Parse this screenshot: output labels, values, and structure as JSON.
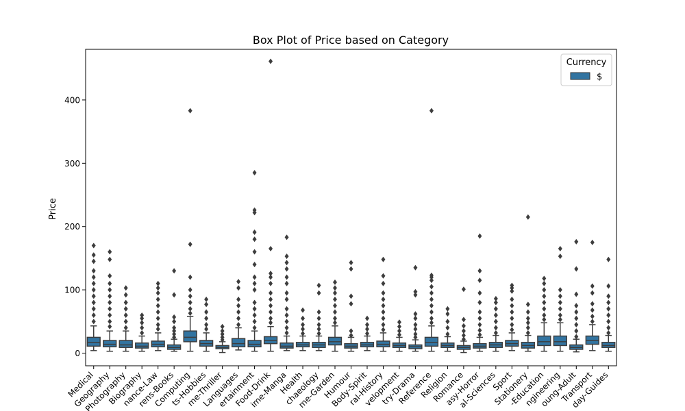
{
  "chart_data": {
    "type": "box",
    "title": "Box Plot of Price based on Category",
    "xlabel": "",
    "ylabel": "Price",
    "ylim": [
      -20,
      480
    ],
    "yticks": [
      0,
      100,
      200,
      300,
      400
    ],
    "grid": false,
    "legend": {
      "title": "Currency",
      "entries": [
        "$"
      ],
      "position": "top-right"
    },
    "color": "#3274a1",
    "categories": [
      "Medical",
      "Geography",
      "Photography",
      "Biography",
      "Finance-Law",
      "Childrens-Books",
      "Computing",
      "Crafts-Hobbies",
      "Crime-Thriller",
      "Languages",
      "Entertainment",
      "Food-Drink",
      "Graphic-Novels-Anime-Manga",
      "Health",
      "Archaeology",
      "Home-Garden",
      "Humour",
      "Mind-Body-Spirit",
      "Natural-History",
      "Personal-Development",
      "Poetry-Drama",
      "Reference",
      "Religion",
      "Romance",
      "Science-Fiction-Fantasy-Horror",
      "Science-Geography-Social-Sciences",
      "Sport",
      "Stationery",
      "Teaching-Education",
      "Technology-Engineering",
      "Teen-Young-Adult",
      "Transport",
      "Travel-Holiday-Guides"
    ],
    "display_labels": [
      "Medical",
      "Geography",
      "Photography",
      "Biography",
      "nance-Law",
      "rens-Books",
      "Computing",
      "ts-Hobbies",
      "me-Thriller",
      "Languages",
      "ertainment",
      "Food-Drink",
      "ime-Manga",
      "Health",
      "chaeology",
      "me-Garden",
      "Humour",
      "Body-Spirit",
      "ral-History",
      "velopment",
      "try-Drama",
      "Reference",
      "Religion",
      "Romance",
      "asy-Horror",
      "al-Sciences",
      "Sport",
      "Stationery",
      "-Education",
      "ngineering",
      "oung-Adult",
      "Transport",
      "day-Guides"
    ],
    "boxes": [
      {
        "q1": 11,
        "median": 17,
        "q3": 25,
        "whislo": 4,
        "whishi": 43,
        "outliers": [
          50,
          60,
          70,
          80,
          90,
          100,
          110,
          120,
          130,
          145,
          155,
          170
        ]
      },
      {
        "q1": 10,
        "median": 14,
        "q3": 20,
        "whislo": 3,
        "whishi": 35,
        "outliers": [
          42,
          50,
          60,
          70,
          80,
          90,
          100,
          110,
          122,
          148,
          160
        ]
      },
      {
        "q1": 9,
        "median": 13,
        "q3": 20,
        "whislo": 3,
        "whishi": 35,
        "outliers": [
          40,
          50,
          60,
          70,
          80,
          92,
          103
        ]
      },
      {
        "q1": 8,
        "median": 11,
        "q3": 16,
        "whislo": 3,
        "whishi": 27,
        "outliers": [
          32,
          40,
          48,
          55,
          60
        ]
      },
      {
        "q1": 10,
        "median": 14,
        "q3": 19,
        "whislo": 4,
        "whishi": 32,
        "outliers": [
          38,
          45,
          55,
          65,
          75,
          85,
          95,
          103,
          110
        ]
      },
      {
        "q1": 6,
        "median": 9,
        "q3": 13,
        "whislo": 3,
        "whishi": 22,
        "outliers": [
          25,
          30,
          35,
          40,
          50,
          57,
          92,
          130
        ]
      },
      {
        "q1": 18,
        "median": 25,
        "q3": 35,
        "whislo": 3,
        "whishi": 58,
        "outliers": [
          63,
          70,
          80,
          90,
          100,
          120,
          172,
          383
        ]
      },
      {
        "q1": 11,
        "median": 15,
        "q3": 20,
        "whislo": 3,
        "whishi": 32,
        "outliers": [
          38,
          45,
          55,
          65,
          77,
          85
        ]
      },
      {
        "q1": 7,
        "median": 9,
        "q3": 12,
        "whislo": 1,
        "whishi": 18,
        "outliers": [
          21,
          25,
          30,
          35,
          42
        ]
      },
      {
        "q1": 10,
        "median": 15,
        "q3": 23,
        "whislo": 5,
        "whishi": 40,
        "outliers": [
          45,
          55,
          65,
          75,
          85,
          103,
          113
        ]
      },
      {
        "q1": 10,
        "median": 14,
        "q3": 20,
        "whislo": 3,
        "whishi": 35,
        "outliers": [
          40,
          50,
          60,
          70,
          80,
          100,
          110,
          120,
          140,
          160,
          180,
          191,
          222,
          226,
          285
        ]
      },
      {
        "q1": 15,
        "median": 20,
        "q3": 26,
        "whislo": 3,
        "whishi": 42,
        "outliers": [
          48,
          55,
          65,
          75,
          85,
          95,
          110,
          120,
          126,
          165,
          461
        ]
      },
      {
        "q1": 8,
        "median": 11,
        "q3": 16,
        "whislo": 4,
        "whishi": 27,
        "outliers": [
          32,
          40,
          50,
          60,
          70,
          85,
          95,
          110,
          120,
          133,
          143,
          153,
          183
        ]
      },
      {
        "q1": 10,
        "median": 13,
        "q3": 17,
        "whislo": 4,
        "whishi": 27,
        "outliers": [
          31,
          38,
          45,
          55,
          68
        ]
      },
      {
        "q1": 9,
        "median": 13,
        "q3": 17,
        "whislo": 4,
        "whishi": 27,
        "outliers": [
          31,
          38,
          45,
          55,
          65,
          95,
          107
        ]
      },
      {
        "q1": 13,
        "median": 18,
        "q3": 25,
        "whislo": 3,
        "whishi": 43,
        "outliers": [
          48,
          55,
          65,
          75,
          85,
          95,
          103,
          112
        ]
      },
      {
        "q1": 8,
        "median": 11,
        "q3": 15,
        "whislo": 3,
        "whishi": 25,
        "outliers": [
          28,
          35,
          78,
          90,
          133,
          143
        ]
      },
      {
        "q1": 10,
        "median": 13,
        "q3": 17,
        "whislo": 4,
        "whishi": 27,
        "outliers": [
          31,
          38,
          45,
          55
        ]
      },
      {
        "q1": 10,
        "median": 14,
        "q3": 19,
        "whislo": 3,
        "whishi": 32,
        "outliers": [
          37,
          45,
          55,
          65,
          75,
          85,
          95,
          110,
          122,
          148
        ]
      },
      {
        "q1": 9,
        "median": 12,
        "q3": 16,
        "whislo": 3,
        "whishi": 25,
        "outliers": [
          29,
          35,
          42,
          49
        ]
      },
      {
        "q1": 7,
        "median": 10,
        "q3": 13,
        "whislo": 3,
        "whishi": 21,
        "outliers": [
          25,
          30,
          38,
          45,
          55,
          62,
          92,
          97,
          135
        ]
      },
      {
        "q1": 11,
        "median": 17,
        "q3": 25,
        "whislo": 3,
        "whishi": 43,
        "outliers": [
          48,
          55,
          65,
          75,
          85,
          95,
          105,
          115,
          120,
          123,
          383
        ]
      },
      {
        "q1": 9,
        "median": 12,
        "q3": 16,
        "whislo": 3,
        "whishi": 26,
        "outliers": [
          30,
          40,
          50,
          62,
          70
        ]
      },
      {
        "q1": 6,
        "median": 9,
        "q3": 12,
        "whislo": 1,
        "whishi": 19,
        "outliers": [
          22,
          28,
          35,
          43,
          53,
          101
        ]
      },
      {
        "q1": 8,
        "median": 11,
        "q3": 15,
        "whislo": 3,
        "whishi": 25,
        "outliers": [
          29,
          36,
          45,
          55,
          65,
          80,
          95,
          115,
          130,
          185
        ]
      },
      {
        "q1": 9,
        "median": 13,
        "q3": 17,
        "whislo": 3,
        "whishi": 28,
        "outliers": [
          32,
          40,
          50,
          60,
          70,
          80,
          86
        ]
      },
      {
        "q1": 11,
        "median": 15,
        "q3": 20,
        "whislo": 4,
        "whishi": 32,
        "outliers": [
          37,
          45,
          55,
          65,
          75,
          85,
          98,
          103,
          107
        ]
      },
      {
        "q1": 8,
        "median": 12,
        "q3": 17,
        "whislo": 3,
        "whishi": 28,
        "outliers": [
          32,
          40,
          48,
          55,
          65,
          77,
          215
        ]
      },
      {
        "q1": 12,
        "median": 18,
        "q3": 27,
        "whislo": 3,
        "whishi": 48,
        "outliers": [
          53,
          60,
          70,
          80,
          90,
          100,
          110,
          118
        ]
      },
      {
        "q1": 12,
        "median": 18,
        "q3": 27,
        "whislo": 3,
        "whishi": 48,
        "outliers": [
          53,
          60,
          70,
          80,
          90,
          100,
          153,
          165
        ]
      },
      {
        "q1": 6,
        "median": 9,
        "q3": 13,
        "whislo": 2,
        "whishi": 22,
        "outliers": [
          26,
          35,
          45,
          55,
          65,
          75,
          93,
          133,
          176
        ]
      },
      {
        "q1": 14,
        "median": 20,
        "q3": 27,
        "whislo": 4,
        "whishi": 45,
        "outliers": [
          50,
          58,
          68,
          78,
          95,
          106,
          175
        ]
      },
      {
        "q1": 9,
        "median": 12,
        "q3": 17,
        "whislo": 3,
        "whishi": 28,
        "outliers": [
          32,
          40,
          50,
          60,
          70,
          80,
          90,
          106,
          148
        ]
      }
    ]
  }
}
